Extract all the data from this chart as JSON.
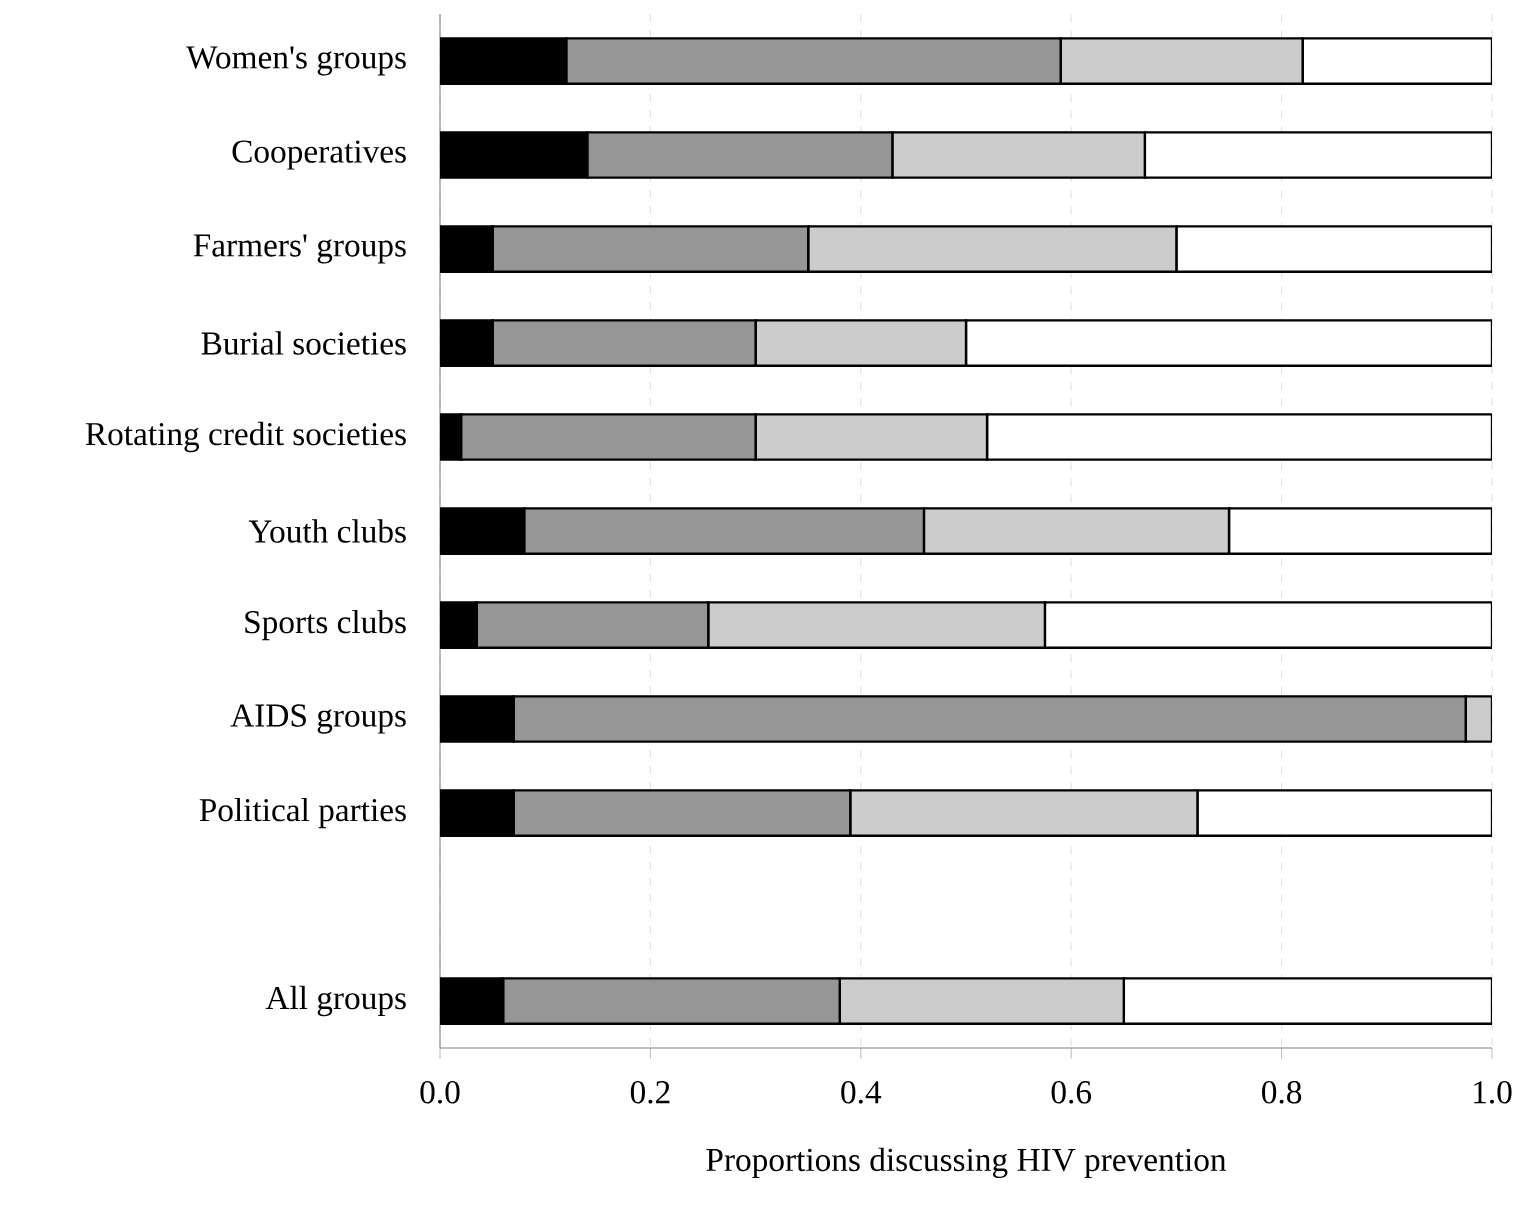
{
  "chart_data": {
    "type": "bar",
    "orientation": "horizontal",
    "stacked": true,
    "xlabel": "Proportions discussing HIV prevention",
    "categories": [
      "Women's groups",
      "Cooperatives",
      "Farmers' groups",
      "Burial societies",
      "Rotating credit societies",
      "Youth clubs",
      "Sports clubs",
      "AIDS groups",
      "Political parties",
      null,
      "All groups"
    ],
    "series": [
      {
        "color": "#000000",
        "values": [
          0.12,
          0.14,
          0.05,
          0.05,
          0.02,
          0.08,
          0.035,
          0.07,
          0.07,
          null,
          0.06
        ]
      },
      {
        "color": "#969696",
        "values": [
          0.47,
          0.29,
          0.3,
          0.25,
          0.28,
          0.38,
          0.22,
          0.905,
          0.32,
          null,
          0.32
        ]
      },
      {
        "color": "#cccccc",
        "values": [
          0.23,
          0.24,
          0.35,
          0.2,
          0.22,
          0.29,
          0.32,
          0.025,
          0.33,
          null,
          0.27
        ]
      },
      {
        "color": "#ffffff",
        "values": [
          0.18,
          0.33,
          0.3,
          0.5,
          0.48,
          0.25,
          0.425,
          0.0,
          0.28,
          null,
          0.35
        ]
      }
    ],
    "xlim": [
      0,
      1
    ],
    "xticks": [
      {
        "value": 0,
        "label": "0.0"
      },
      0.2,
      0.4,
      0.6,
      0.8,
      {
        "value": 1,
        "label": "1.0"
      }
    ],
    "grid": "x"
  }
}
